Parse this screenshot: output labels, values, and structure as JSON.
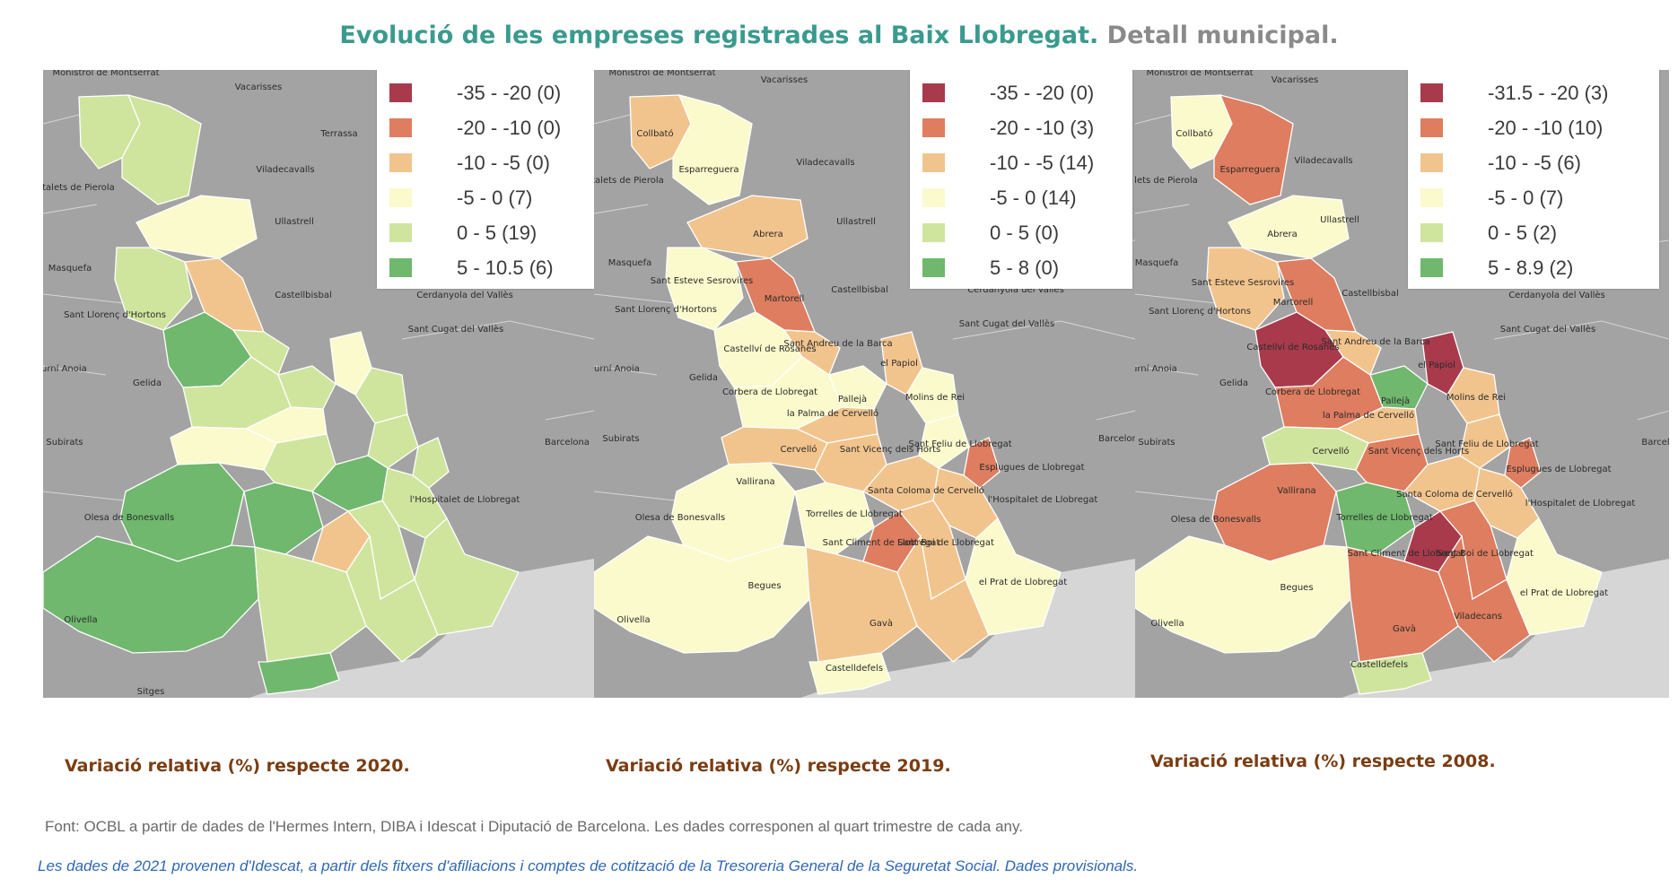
{
  "title": {
    "part1": "Evolució de les empreses registrades al Baix Llobregat.",
    "part2": "Detall municipal."
  },
  "colors": {
    "c1": "#a83a4c",
    "c2": "#de7d5f",
    "c3": "#f2c48d",
    "c4": "#fafacc",
    "c5": "#cfe59e",
    "c6": "#6fb86e",
    "background_gray": "#a3a3a3",
    "sea": "#d6d6d6",
    "title_teal": "#3a9a8e",
    "caption_brown": "#7a3c12",
    "note_blue": "#2e67b8"
  },
  "maps": [
    {
      "caption": "Variació relativa (%) respecte 2020.",
      "legend": [
        {
          "label": "-35 - -20 (0)",
          "color": "#a83a4c"
        },
        {
          "label": "-20 - -10 (0)",
          "color": "#de7d5f"
        },
        {
          "label": "-10 - -5 (0)",
          "color": "#f2c48d"
        },
        {
          "label": "-5 - 0 (7)",
          "color": "#fafacc"
        },
        {
          "label": "0 - 5 (19)",
          "color": "#cfe59e"
        },
        {
          "label": "5 - 10.5 (6)",
          "color": "#6fb86e"
        }
      ],
      "labels": [
        "Monistrol de Montserrat",
        "Vacarisses",
        "Terrassa",
        "Viladecavalls",
        "Hostalets de Pierola",
        "Ullastrell",
        "Masquefa",
        "Castellbisbal",
        "Cerdanyola del Vallès",
        "Sant Llorenç d'Hortons",
        "Sant Cugat del Vallès",
        "Sadurní Anoia",
        "Gelida",
        "Subirats",
        "Barcelona",
        "Olesa de Bonesvalls",
        "Olivella",
        "Sitges",
        "l'Hospitalet de Llobregat"
      ]
    },
    {
      "caption": "Variació relativa (%) respecte 2019.",
      "legend": [
        {
          "label": "-35 - -20 (0)",
          "color": "#a83a4c"
        },
        {
          "label": "-20 - -10 (3)",
          "color": "#de7d5f"
        },
        {
          "label": "-10 - -5 (14)",
          "color": "#f2c48d"
        },
        {
          "label": "-5 - 0 (14)",
          "color": "#fafacc"
        },
        {
          "label": "0 - 5 (0)",
          "color": "#cfe59e"
        },
        {
          "label": "5 - 8 (0)",
          "color": "#6fb86e"
        }
      ],
      "labels": [
        "Monistrol de Montserrat",
        "Vacarisses",
        "Collbató",
        "Esparreguera",
        "Viladecavalls",
        "Hostalets de Pierola",
        "Ullastrell",
        "Abrera",
        "Masquefa",
        "Sant Esteve Sesrovires",
        "Martorell",
        "Castellbisbal",
        "Cerdanyola del Vallès",
        "Sant Llorenç d'Hortons",
        "Sant Cugat del Vallès",
        "Sant Andreu de la Barca",
        "Castellví de Rosanes",
        "el Papiol",
        "Sadurní Anoia",
        "Gelida",
        "Corbera de Llobregat",
        "Pallejà",
        "Molins de Rei",
        "la Palma de Cervelló",
        "Subirats",
        "Cervelló",
        "Sant Vicenç dels Horts",
        "Sant Feliu de Llobregat",
        "Barcelon",
        "Esplugues de Llobregat",
        "Vallirana",
        "Santa Coloma de Cervelló",
        "Olesa de Bonesvalls",
        "Torrelles de Llobregat",
        "l'Hospitalet de Llobregat",
        "Sant Climent de Llobregat",
        "Sant Boi de Llobregat",
        "Begues",
        "el Prat de Llobregat",
        "Olivella",
        "Gavà",
        "Castelldefels"
      ]
    },
    {
      "caption": "Variació relativa (%) respecte 2008.",
      "legend": [
        {
          "label": "-31.5 - -20 (3)",
          "color": "#a83a4c"
        },
        {
          "label": "-20 - -10 (10)",
          "color": "#de7d5f"
        },
        {
          "label": "-10 - -5 (6)",
          "color": "#f2c48d"
        },
        {
          "label": "-5 - 0 (7)",
          "color": "#fafacc"
        },
        {
          "label": "0 - 5 (2)",
          "color": "#cfe59e"
        },
        {
          "label": "5 - 8.9 (2)",
          "color": "#6fb86e"
        }
      ],
      "labels": [
        "Monistrol de Montserrat",
        "Vacarisses",
        "Collbató",
        "Esparreguera",
        "Viladecavalls",
        "Hostalets de Pierola",
        "Ullastrell",
        "Abrera",
        "Masquefa",
        "Sant Esteve Sesrovires",
        "Martorell",
        "Castellbisbal",
        "Cerdanyola del Vallès",
        "Sant Llorenç d'Hortons",
        "Sant Cugat del Vallès",
        "Sant Andreu de la Barca",
        "Castellví de Rosanes",
        "el Papiol",
        "Sadurní Anoia",
        "Gelida",
        "Corbera de Llobregat",
        "Pallejà",
        "Molins de Rei",
        "la Palma de Cervelló",
        "Subirats",
        "Cervelló",
        "Sant Vicenç dels Horts",
        "Sant Feliu de Llobregat",
        "Barcel",
        "Esplugues de Llobregat",
        "Vallirana",
        "Santa Coloma de Cervelló",
        "Olesa de Bonesvalls",
        "Torrelles de Llobregat",
        "l'Hospitalet de Llobregat",
        "Sant Climent de Llobregat",
        "Sant Boi de Llobregat",
        "Begues",
        "el Prat de Llobregat",
        "Olivella",
        "Gavà",
        "Viladecans",
        "Castelldefels"
      ]
    }
  ],
  "source": "Font: OCBL a partir de dades de l'Hermes Intern, DIBA i Idescat i Diputació de Barcelona. Les dades corresponen al quart trimestre de cada any.",
  "note": "Les dades de 2021 provenen d'Idescat, a partir dels fitxers d'afiliacions i comptes de cotització de la Tresoreria General de la Seguretat Social. Dades provisionals."
}
